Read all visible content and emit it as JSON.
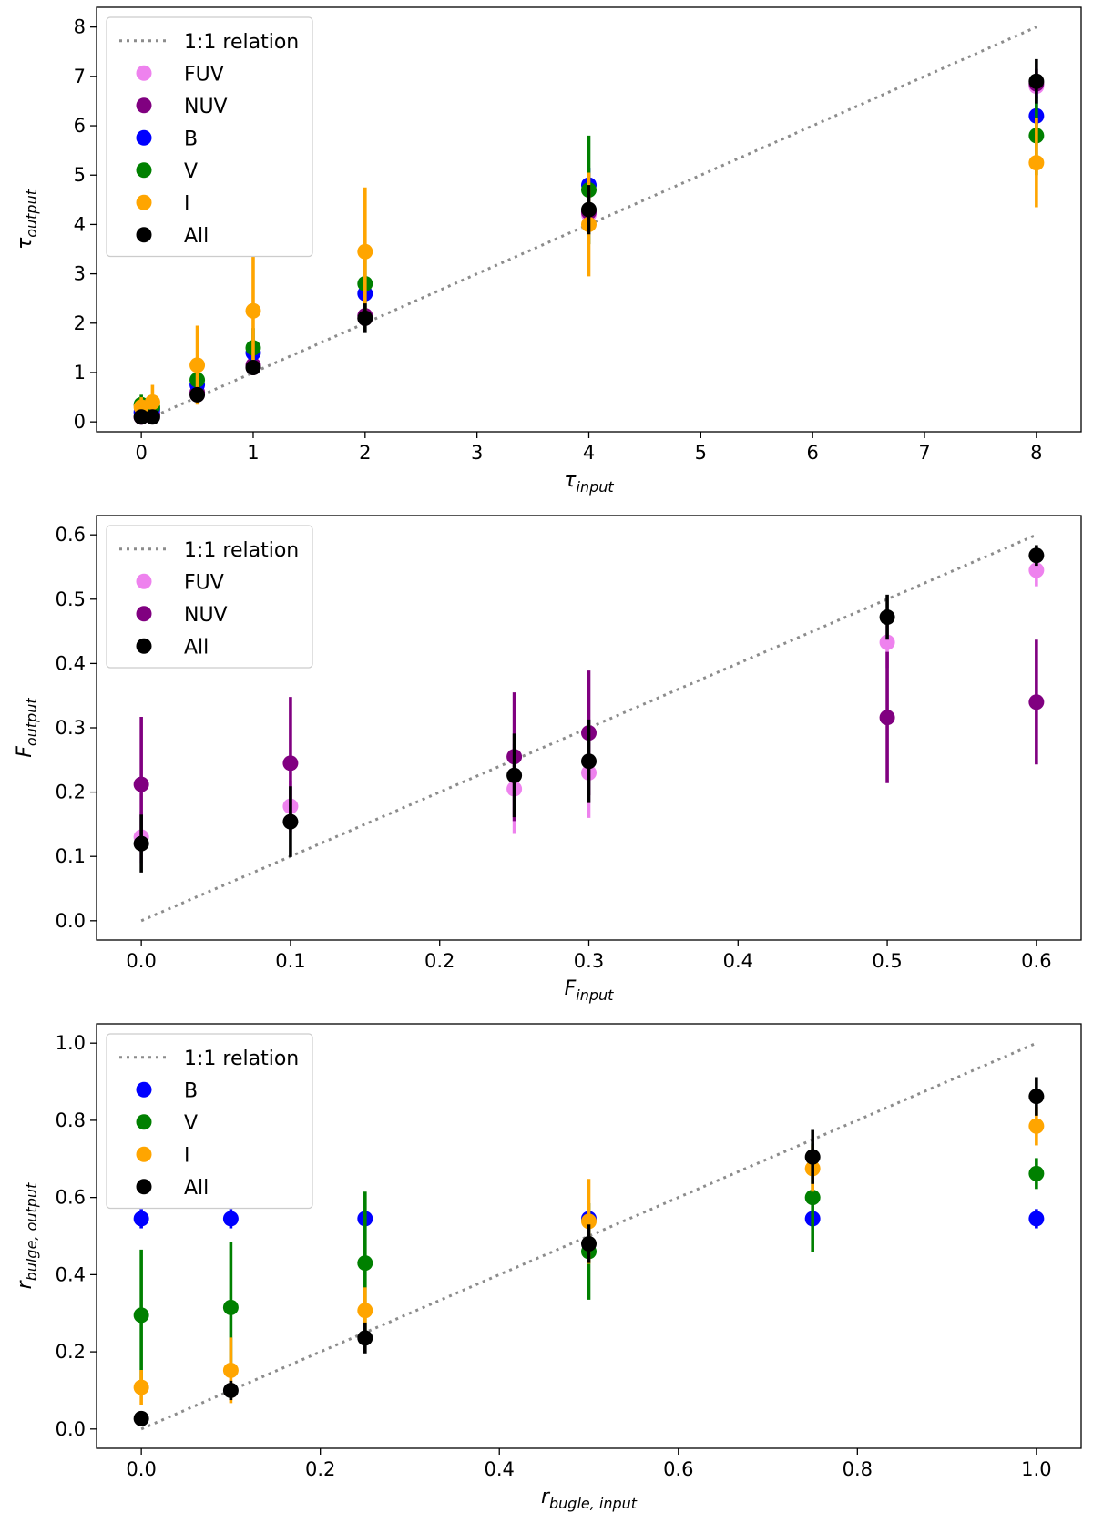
{
  "colors": {
    "FUV": "#ee82ee",
    "NUV": "#800080",
    "B": "#0000ff",
    "V": "#008000",
    "I": "#ffa500",
    "All": "#000000",
    "relation": "#8c8c8c"
  },
  "chart_data": [
    {
      "type": "scatter",
      "id": "tau",
      "xlabel": {
        "base": "τ",
        "sub": "input"
      },
      "ylabel": {
        "base": "τ",
        "sub": "output"
      },
      "xlim": [
        -0.4,
        8.4
      ],
      "ylim": [
        -0.2,
        8.4
      ],
      "xticks": [
        0,
        1,
        2,
        3,
        4,
        5,
        6,
        7,
        8
      ],
      "yticks": [
        0,
        1,
        2,
        3,
        4,
        5,
        6,
        7,
        8
      ],
      "tick_format": "int",
      "relation": {
        "label": "1:1 relation",
        "from": 0,
        "to": 8
      },
      "legend_position": "top-left",
      "series": [
        {
          "name": "FUV",
          "points": [
            {
              "x": 0,
              "y": 0.1,
              "err": 0.05
            },
            {
              "x": 0.1,
              "y": 0.2,
              "err": 0.05
            },
            {
              "x": 0.5,
              "y": 0.55,
              "err": 0.1
            },
            {
              "x": 1,
              "y": 1.1,
              "err": 0.1
            },
            {
              "x": 2,
              "y": 2.1,
              "err": 0.15
            },
            {
              "x": 4,
              "y": 4.2,
              "err": 0.2
            },
            {
              "x": 8,
              "y": 6.8,
              "err": 0.3
            }
          ]
        },
        {
          "name": "NUV",
          "points": [
            {
              "x": 0,
              "y": 0.1,
              "err": 0.05
            },
            {
              "x": 0.1,
              "y": 0.15,
              "err": 0.05
            },
            {
              "x": 0.5,
              "y": 0.6,
              "err": 0.1
            },
            {
              "x": 1,
              "y": 1.15,
              "err": 0.1
            },
            {
              "x": 2,
              "y": 2.15,
              "err": 0.15
            },
            {
              "x": 4,
              "y": 4.25,
              "err": 0.2
            },
            {
              "x": 8,
              "y": 6.85,
              "err": 0.3
            }
          ]
        },
        {
          "name": "B",
          "points": [
            {
              "x": 0,
              "y": 0.2,
              "err": 0.1
            },
            {
              "x": 0.1,
              "y": 0.25,
              "err": 0.1
            },
            {
              "x": 0.5,
              "y": 0.75,
              "err": 0.15
            },
            {
              "x": 1,
              "y": 1.4,
              "err": 0.2
            },
            {
              "x": 2,
              "y": 2.6,
              "err": 0.3
            },
            {
              "x": 4,
              "y": 4.8,
              "err": 0.35
            },
            {
              "x": 8,
              "y": 6.2,
              "err": 0.5
            }
          ]
        },
        {
          "name": "V",
          "points": [
            {
              "x": 0,
              "y": 0.35,
              "err": 0.2
            },
            {
              "x": 0.1,
              "y": 0.3,
              "err": 0.2
            },
            {
              "x": 0.5,
              "y": 0.85,
              "err": 0.3
            },
            {
              "x": 1,
              "y": 1.5,
              "err": 0.4
            },
            {
              "x": 2,
              "y": 2.8,
              "err": 0.6
            },
            {
              "x": 4,
              "y": 4.7,
              "err": 1.1
            },
            {
              "x": 8,
              "y": 5.8,
              "err": 0.8
            }
          ]
        },
        {
          "name": "I",
          "points": [
            {
              "x": 0,
              "y": 0.3,
              "err": 0.2
            },
            {
              "x": 0.1,
              "y": 0.4,
              "err": 0.35
            },
            {
              "x": 0.5,
              "y": 1.15,
              "err": 0.8
            },
            {
              "x": 1,
              "y": 2.25,
              "err": 1.1
            },
            {
              "x": 2,
              "y": 3.45,
              "err": 1.3
            },
            {
              "x": 4,
              "y": 4.0,
              "err": 1.05
            },
            {
              "x": 8,
              "y": 5.25,
              "err": 0.9
            }
          ]
        },
        {
          "name": "All",
          "points": [
            {
              "x": 0,
              "y": 0.1,
              "err": 0.05
            },
            {
              "x": 0.1,
              "y": 0.1,
              "err": 0.05
            },
            {
              "x": 0.5,
              "y": 0.55,
              "err": 0.1
            },
            {
              "x": 1,
              "y": 1.1,
              "err": 0.15
            },
            {
              "x": 2,
              "y": 2.1,
              "err": 0.3
            },
            {
              "x": 4,
              "y": 4.3,
              "err": 0.5
            },
            {
              "x": 8,
              "y": 6.9,
              "err": 0.45
            }
          ]
        }
      ]
    },
    {
      "type": "scatter",
      "id": "F",
      "xlabel": {
        "base": "F",
        "sub": "input"
      },
      "ylabel": {
        "base": "F",
        "sub": "output"
      },
      "xlim": [
        -0.03,
        0.63
      ],
      "ylim": [
        -0.03,
        0.63
      ],
      "xticks": [
        0.0,
        0.1,
        0.2,
        0.3,
        0.4,
        0.5,
        0.6
      ],
      "yticks": [
        0.0,
        0.1,
        0.2,
        0.3,
        0.4,
        0.5,
        0.6
      ],
      "tick_format": "1",
      "relation": {
        "label": "1:1 relation",
        "from": 0,
        "to": 0.6
      },
      "legend_position": "top-left",
      "series": [
        {
          "name": "FUV",
          "points": [
            {
              "x": 0,
              "y": 0.13,
              "err": 0.04
            },
            {
              "x": 0.1,
              "y": 0.178,
              "err": 0.04
            },
            {
              "x": 0.25,
              "y": 0.205,
              "err": 0.07
            },
            {
              "x": 0.3,
              "y": 0.23,
              "err": 0.07
            },
            {
              "x": 0.5,
              "y": 0.433,
              "err": 0.04
            },
            {
              "x": 0.6,
              "y": 0.545,
              "err": 0.025
            }
          ]
        },
        {
          "name": "NUV",
          "points": [
            {
              "x": 0,
              "y": 0.212,
              "err": 0.105
            },
            {
              "x": 0.1,
              "y": 0.245,
              "err": 0.103
            },
            {
              "x": 0.25,
              "y": 0.255,
              "err": 0.1
            },
            {
              "x": 0.3,
              "y": 0.292,
              "err": 0.097
            },
            {
              "x": 0.5,
              "y": 0.316,
              "err": 0.102
            },
            {
              "x": 0.6,
              "y": 0.34,
              "err": 0.097
            }
          ]
        },
        {
          "name": "All",
          "points": [
            {
              "x": 0,
              "y": 0.12,
              "err": 0.045
            },
            {
              "x": 0.1,
              "y": 0.154,
              "err": 0.055
            },
            {
              "x": 0.25,
              "y": 0.226,
              "err": 0.065
            },
            {
              "x": 0.3,
              "y": 0.248,
              "err": 0.065
            },
            {
              "x": 0.5,
              "y": 0.472,
              "err": 0.035
            },
            {
              "x": 0.6,
              "y": 0.568,
              "err": 0.016
            }
          ]
        }
      ]
    },
    {
      "type": "scatter",
      "id": "rbulge",
      "xlabel": {
        "base": "r",
        "sub": "bugle, input"
      },
      "ylabel": {
        "base": "r",
        "sub": "bulge, output"
      },
      "xlim": [
        -0.05,
        1.05
      ],
      "ylim": [
        -0.05,
        1.05
      ],
      "xticks": [
        0.0,
        0.2,
        0.4,
        0.6,
        0.8,
        1.0
      ],
      "yticks": [
        0.0,
        0.2,
        0.4,
        0.6,
        0.8,
        1.0
      ],
      "tick_format": "1",
      "relation": {
        "label": "1:1 relation",
        "from": 0,
        "to": 1.0
      },
      "legend_position": "top-left",
      "series": [
        {
          "name": "B",
          "points": [
            {
              "x": 0,
              "y": 0.545,
              "err": 0.025
            },
            {
              "x": 0.1,
              "y": 0.545,
              "err": 0.025
            },
            {
              "x": 0.25,
              "y": 0.545,
              "err": 0.015
            },
            {
              "x": 0.5,
              "y": 0.545,
              "err": 0.015
            },
            {
              "x": 0.75,
              "y": 0.545,
              "err": 0.015
            },
            {
              "x": 1.0,
              "y": 0.545,
              "err": 0.025
            }
          ]
        },
        {
          "name": "V",
          "points": [
            {
              "x": 0,
              "y": 0.295,
              "err": 0.17
            },
            {
              "x": 0.1,
              "y": 0.315,
              "err": 0.17
            },
            {
              "x": 0.25,
              "y": 0.43,
              "err": 0.185
            },
            {
              "x": 0.5,
              "y": 0.46,
              "err": 0.125
            },
            {
              "x": 0.75,
              "y": 0.6,
              "err": 0.14
            },
            {
              "x": 1.0,
              "y": 0.662,
              "err": 0.04
            }
          ]
        },
        {
          "name": "I",
          "points": [
            {
              "x": 0,
              "y": 0.108,
              "err": 0.045
            },
            {
              "x": 0.1,
              "y": 0.152,
              "err": 0.085
            },
            {
              "x": 0.25,
              "y": 0.307,
              "err": 0.06
            },
            {
              "x": 0.5,
              "y": 0.538,
              "err": 0.11
            },
            {
              "x": 0.75,
              "y": 0.675,
              "err": 0.06
            },
            {
              "x": 1.0,
              "y": 0.785,
              "err": 0.05
            }
          ]
        },
        {
          "name": "All",
          "points": [
            {
              "x": 0,
              "y": 0.027,
              "err": 0.012
            },
            {
              "x": 0.1,
              "y": 0.1,
              "err": 0.025
            },
            {
              "x": 0.25,
              "y": 0.236,
              "err": 0.04
            },
            {
              "x": 0.5,
              "y": 0.48,
              "err": 0.05
            },
            {
              "x": 0.75,
              "y": 0.705,
              "err": 0.07
            },
            {
              "x": 1.0,
              "y": 0.862,
              "err": 0.05
            }
          ]
        }
      ]
    }
  ]
}
